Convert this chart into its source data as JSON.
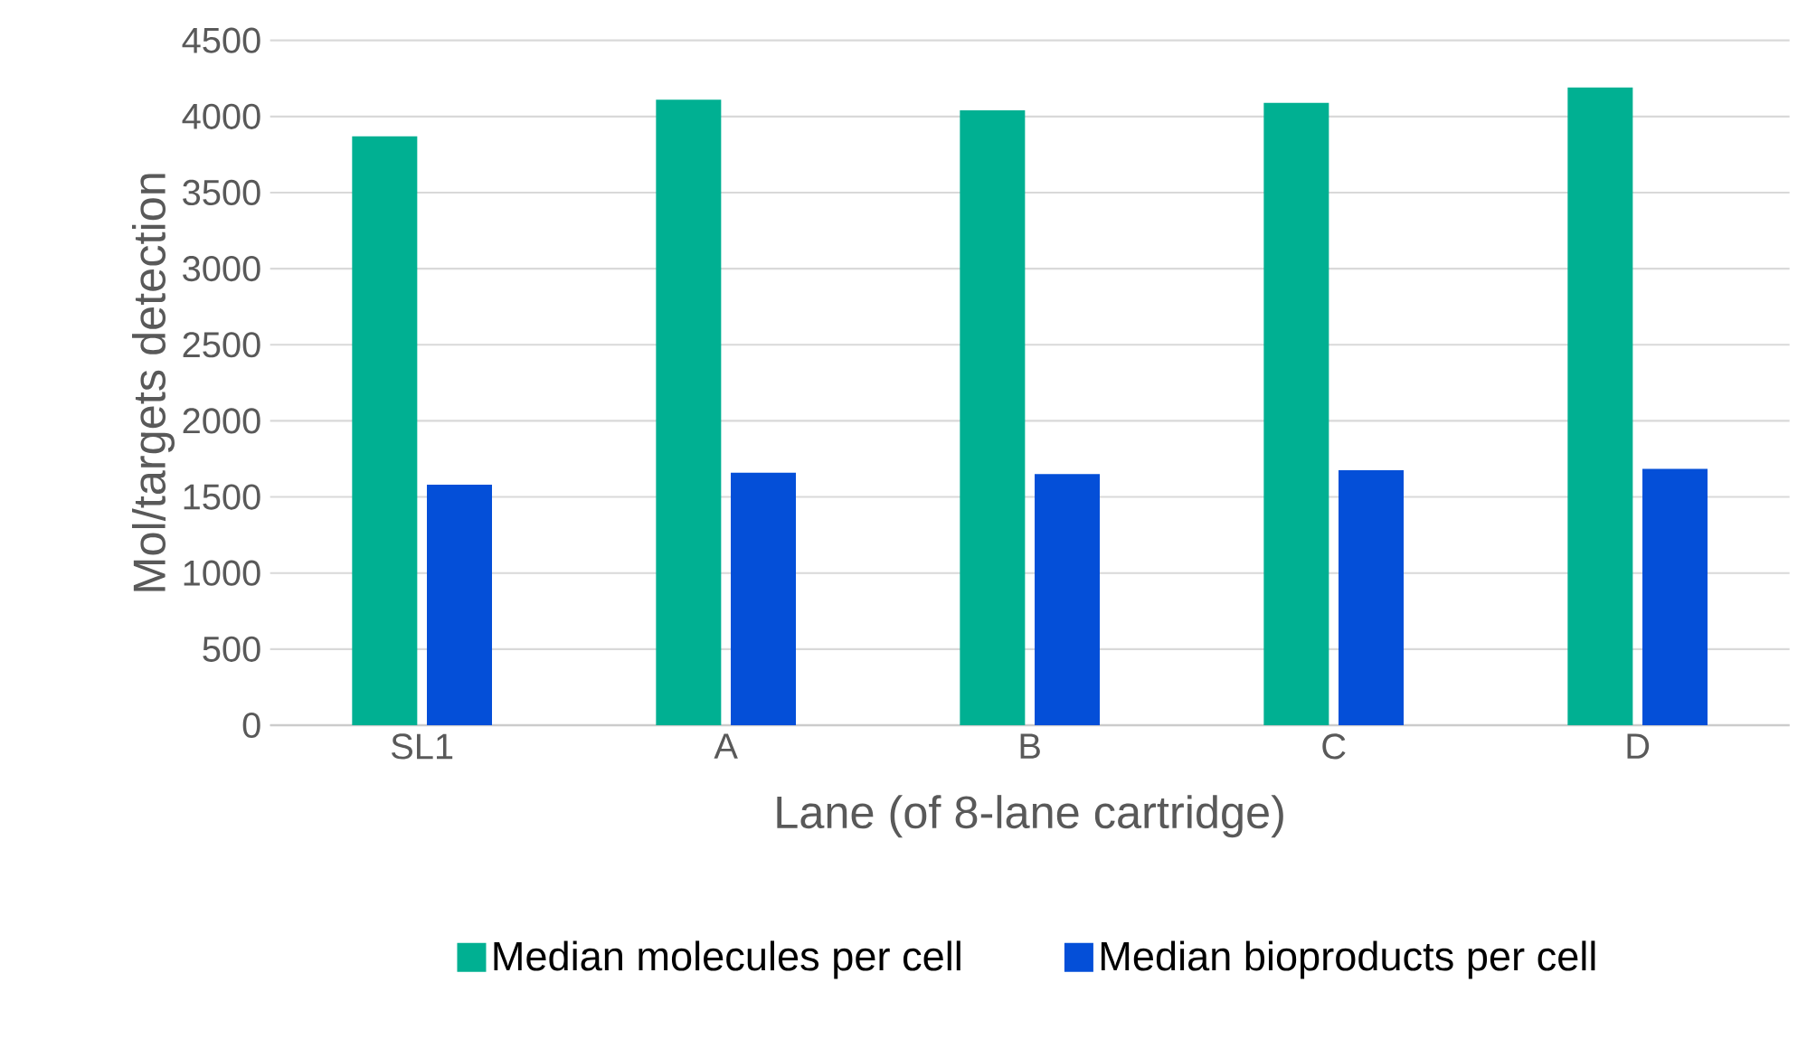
{
  "chart_data": {
    "type": "bar",
    "xlabel": "Lane (of 8-lane cartridge)",
    "ylabel": "Mol/targets detection",
    "categories": [
      "SL1",
      "A",
      "B",
      "C",
      "D"
    ],
    "series": [
      {
        "name": "Median molecules per cell",
        "color": "#00b092",
        "values": [
          3870,
          4110,
          4040,
          4090,
          4190
        ]
      },
      {
        "name": "Median bioproducts per cell",
        "color": "#044fd8",
        "values": [
          1580,
          1660,
          1650,
          1675,
          1685
        ]
      }
    ],
    "ylim": [
      0,
      4500
    ],
    "yticks": [
      0,
      500,
      1000,
      1500,
      2000,
      2500,
      3000,
      3500,
      4000,
      4500
    ],
    "grid": "y",
    "legend": "bottom"
  }
}
